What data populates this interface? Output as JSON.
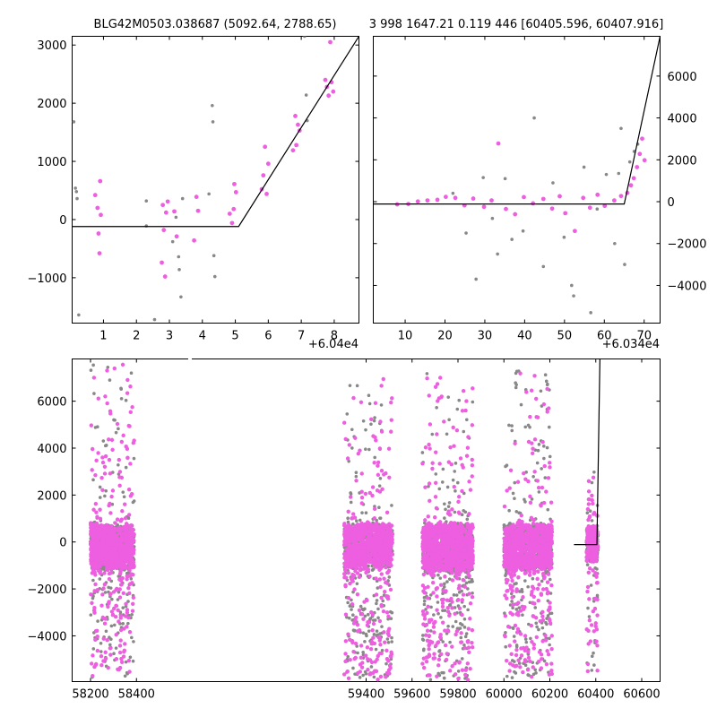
{
  "chart_data": [
    {
      "type": "scatter",
      "title": "BLG42M0503.038687 (5092.64, 2788.65)",
      "xlim": [
        0.05,
        8.75
      ],
      "ylim": [
        -1780,
        3150
      ],
      "xticks": [
        "1",
        "2",
        "3",
        "4",
        "5",
        "6",
        "7",
        "8"
      ],
      "yticks": [
        "−1000",
        "0",
        "1000",
        "2000",
        "3000"
      ],
      "offset_label": "+6.04e4",
      "colors": {
        "primary": "#ee5ee0",
        "secondary": "#888888",
        "model": "#000000"
      },
      "series": [
        {
          "values": [
            [
              0.75,
              420
            ],
            [
              0.82,
              200
            ],
            [
              0.85,
              -240
            ],
            [
              0.88,
              -580
            ],
            [
              0.9,
              660
            ],
            [
              0.92,
              80
            ],
            [
              2.77,
              -740
            ],
            [
              2.8,
              250
            ],
            [
              2.83,
              -180
            ],
            [
              2.87,
              -980
            ],
            [
              2.9,
              120
            ],
            [
              2.95,
              310
            ],
            [
              3.15,
              140
            ],
            [
              3.22,
              -290
            ],
            [
              3.75,
              -360
            ],
            [
              3.82,
              390
            ],
            [
              3.87,
              150
            ],
            [
              4.83,
              100
            ],
            [
              4.9,
              -60
            ],
            [
              4.95,
              180
            ],
            [
              4.97,
              610
            ],
            [
              5.02,
              470
            ],
            [
              5.8,
              520
            ],
            [
              5.85,
              760
            ],
            [
              5.9,
              1250
            ],
            [
              5.95,
              440
            ],
            [
              6.0,
              960
            ],
            [
              6.75,
              1190
            ],
            [
              6.82,
              1780
            ],
            [
              6.85,
              1280
            ],
            [
              6.9,
              1630
            ],
            [
              6.95,
              1530
            ],
            [
              7.73,
              2400
            ],
            [
              7.78,
              2280
            ],
            [
              7.83,
              2130
            ],
            [
              7.88,
              3050
            ],
            [
              7.92,
              2360
            ],
            [
              7.97,
              2200
            ]
          ]
        },
        {
          "values": [
            [
              0.1,
              1680
            ],
            [
              0.15,
              540
            ],
            [
              0.18,
              480
            ],
            [
              0.2,
              360
            ],
            [
              0.25,
              -1640
            ],
            [
              2.3,
              320
            ],
            [
              2.3,
              -110
            ],
            [
              2.55,
              -1720
            ],
            [
              3.1,
              -380
            ],
            [
              3.2,
              40
            ],
            [
              3.28,
              -640
            ],
            [
              3.3,
              -860
            ],
            [
              3.35,
              -1330
            ],
            [
              3.4,
              360
            ],
            [
              4.2,
              440
            ],
            [
              4.3,
              1960
            ],
            [
              4.32,
              1680
            ],
            [
              4.35,
              -620
            ],
            [
              4.38,
              -980
            ],
            [
              7.1,
              3150
            ],
            [
              7.15,
              2140
            ],
            [
              7.18,
              1700
            ]
          ]
        }
      ],
      "model": {
        "x": [
          0.05,
          5.1,
          8.75
        ],
        "y": [
          -120,
          -120,
          3150
        ]
      }
    },
    {
      "type": "scatter",
      "title": "3 998 1647.21 0.119 446 [60405.596, 60407.916]",
      "xlim": [
        2,
        74
      ],
      "ylim": [
        -5800,
        7900
      ],
      "xticks": [
        "10",
        "20",
        "30",
        "40",
        "50",
        "60",
        "70"
      ],
      "yticks": [
        "−4000",
        "−2000",
        "0",
        "2000",
        "4000",
        "6000"
      ],
      "offset_label": "+6.034e4",
      "colors": {
        "primary": "#ee5ee0",
        "secondary": "#888888",
        "model": "#000000"
      },
      "series": [
        {
          "values": [
            [
              8.0,
              -130
            ],
            [
              10.8,
              -110
            ],
            [
              13.2,
              10
            ],
            [
              15.6,
              60
            ],
            [
              18.1,
              90
            ],
            [
              20.2,
              230
            ],
            [
              22.6,
              180
            ],
            [
              24.9,
              -180
            ],
            [
              27.1,
              150
            ],
            [
              29.8,
              -250
            ],
            [
              31.7,
              60
            ],
            [
              33.4,
              2780
            ],
            [
              35.3,
              -350
            ],
            [
              37.6,
              -600
            ],
            [
              39.8,
              220
            ],
            [
              42.1,
              -80
            ],
            [
              44.7,
              130
            ],
            [
              46.9,
              -330
            ],
            [
              48.8,
              260
            ],
            [
              50.2,
              -550
            ],
            [
              52.6,
              -1400
            ],
            [
              54.7,
              180
            ],
            [
              56.4,
              -290
            ],
            [
              58.3,
              330
            ],
            [
              60.1,
              -200
            ],
            [
              62.5,
              60
            ],
            [
              64.2,
              270
            ],
            [
              65.8,
              420
            ],
            [
              66.7,
              780
            ],
            [
              67.4,
              1120
            ],
            [
              68.2,
              1650
            ],
            [
              68.9,
              2280
            ],
            [
              69.5,
              3010
            ],
            [
              70.1,
              1980
            ]
          ]
        },
        {
          "values": [
            [
              22.0,
              400
            ],
            [
              25.3,
              -1500
            ],
            [
              27.8,
              -3700
            ],
            [
              29.6,
              1150
            ],
            [
              31.9,
              -800
            ],
            [
              33.2,
              -2500
            ],
            [
              35.1,
              1100
            ],
            [
              36.8,
              -1800
            ],
            [
              39.6,
              -1400
            ],
            [
              42.4,
              4000
            ],
            [
              44.7,
              -3100
            ],
            [
              47.1,
              900
            ],
            [
              49.9,
              -1700
            ],
            [
              51.8,
              -4000
            ],
            [
              52.3,
              -4500
            ],
            [
              54.9,
              1650
            ],
            [
              56.6,
              -5300
            ],
            [
              58.2,
              -350
            ],
            [
              60.5,
              1300
            ],
            [
              62.6,
              -2000
            ],
            [
              63.6,
              1350
            ],
            [
              64.2,
              3500
            ],
            [
              65.1,
              -3000
            ],
            [
              66.4,
              1900
            ],
            [
              67.5,
              2400
            ],
            [
              68.4,
              2750
            ]
          ]
        }
      ],
      "model": {
        "x": [
          2,
          65,
          74
        ],
        "y": [
          -110,
          -110,
          7900
        ]
      }
    },
    {
      "type": "scatter",
      "xlim": [
        58120,
        60680
      ],
      "ylim": [
        -5950,
        7800
      ],
      "broken_axis": true,
      "xticks": [
        "58200",
        "58400",
        "59400",
        "59600",
        "59800",
        "60000",
        "60200",
        "60400",
        "60600"
      ],
      "yticks": [
        "−4000",
        "−2000",
        "0",
        "2000",
        "4000",
        "6000"
      ],
      "colors": {
        "primary": "#ee5ee0",
        "secondary": "#888888",
        "model": "#000000"
      },
      "seasons": [
        {
          "center": 58295,
          "half_width": 95,
          "core_low": -1100,
          "core_high": 700,
          "high_extreme": 7600,
          "low_extreme": -5800
        },
        {
          "center": 59410,
          "half_width": 105,
          "core_low": -1000,
          "core_high": 700,
          "high_extreme": 7200,
          "low_extreme": -5900
        },
        {
          "center": 59755,
          "half_width": 110,
          "core_low": -1200,
          "core_high": 700,
          "high_extreme": 7200,
          "low_extreme": -5900
        },
        {
          "center": 60105,
          "half_width": 105,
          "core_low": -1100,
          "core_high": 700,
          "high_extreme": 7600,
          "low_extreme": -5800
        },
        {
          "center": 60385,
          "half_width": 25,
          "core_low": -800,
          "core_high": 600,
          "high_extreme": 3100,
          "low_extreme": -5600
        }
      ],
      "model": {
        "x": [
          60305,
          60405,
          60418
        ],
        "y": [
          -110,
          -110,
          7800
        ]
      }
    }
  ]
}
